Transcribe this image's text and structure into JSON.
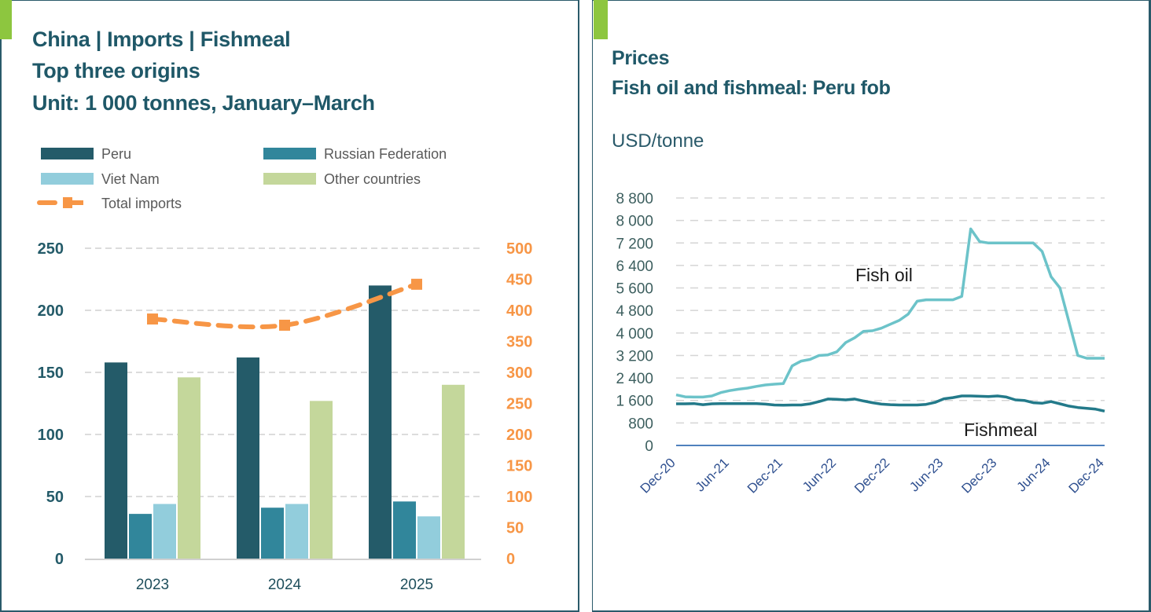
{
  "left_panel": {
    "title_lines": [
      "China | Imports | Fishmeal",
      "Top three origins",
      "Unit: 1 000 tonnes, January–March"
    ],
    "accent_color": "#8dc63f"
  },
  "right_panel": {
    "title_lines": [
      "Prices",
      "Fish oil and fishmeal: Peru fob"
    ],
    "unit_label": "USD/tonne",
    "accent_color": "#8dc63f"
  },
  "chart_data": [
    {
      "type": "bar",
      "title": "China | Imports | Fishmeal — Top three origins",
      "subtitle": "Unit: 1 000 tonnes, January–March",
      "categories": [
        "2023",
        "2024",
        "2025"
      ],
      "series": [
        {
          "name": "Peru",
          "color": "#245b69",
          "axis": "left",
          "values": [
            158,
            162,
            220
          ]
        },
        {
          "name": "Russian Federation",
          "color": "#31869b",
          "axis": "left",
          "values": [
            36,
            41,
            46
          ]
        },
        {
          "name": "Viet Nam",
          "color": "#92cddc",
          "axis": "left",
          "values": [
            44,
            44,
            34
          ]
        },
        {
          "name": "Other countries",
          "color": "#c4d79b",
          "axis": "left",
          "values": [
            146,
            127,
            140
          ]
        },
        {
          "name": "Total imports",
          "color": "#f79646",
          "axis": "right",
          "style": "dashed-line-square-markers",
          "values": [
            386,
            376,
            442
          ]
        }
      ],
      "legend": {
        "placement": "top",
        "entries": [
          "Peru",
          "Russian Federation",
          "Viet Nam",
          "Other countries",
          "Total imports"
        ]
      },
      "y_left": {
        "ylim": [
          0,
          250
        ],
        "ticks": [
          "0",
          "50",
          "100",
          "150",
          "200",
          "250"
        ],
        "color": "#245b69"
      },
      "y_right": {
        "ylim": [
          0,
          500
        ],
        "ticks": [
          "0",
          "50",
          "100",
          "150",
          "200",
          "250",
          "300",
          "350",
          "400",
          "450",
          "500"
        ],
        "color": "#f79646"
      },
      "xlabel": "",
      "grid": true
    },
    {
      "type": "line",
      "title": "Prices — Fish oil and fishmeal: Peru fob",
      "ylabel": "USD/tonne",
      "ylim": [
        0,
        8800
      ],
      "y_ticks": [
        "0",
        "800",
        "1 600",
        "2 400",
        "3 200",
        "4 000",
        "4 800",
        "5 600",
        "6 400",
        "7 200",
        "8 000",
        "8 800"
      ],
      "x_tick_labels": [
        "Dec-20",
        "Jun-21",
        "Dec-21",
        "Jun-22",
        "Dec-22",
        "Jun-23",
        "Dec-23",
        "Jun-24",
        "Dec-24"
      ],
      "x_start": "Dec-20",
      "x_end": "Dec-24",
      "x_unit": "month",
      "grid": true,
      "series": [
        {
          "name": "Fish oil",
          "label": "Fish oil",
          "color": "#6cc3c9",
          "values": [
            1800,
            1730,
            1720,
            1720,
            1760,
            1880,
            1950,
            2000,
            2040,
            2100,
            2150,
            2180,
            2200,
            2830,
            3000,
            3060,
            3200,
            3220,
            3330,
            3660,
            3830,
            4060,
            4080,
            4170,
            4310,
            4450,
            4670,
            5130,
            5180,
            5180,
            5180,
            5180,
            5300,
            7700,
            7250,
            7200,
            7200,
            7200,
            7200,
            7200,
            7200,
            6900,
            6000,
            5600,
            4400,
            3200,
            3100,
            3100,
            3100
          ]
        },
        {
          "name": "Fishmeal",
          "label": "Fishmeal",
          "color": "#237a8a",
          "values": [
            1480,
            1480,
            1490,
            1450,
            1480,
            1490,
            1490,
            1490,
            1490,
            1490,
            1470,
            1440,
            1430,
            1440,
            1440,
            1480,
            1560,
            1650,
            1640,
            1620,
            1650,
            1580,
            1520,
            1470,
            1450,
            1440,
            1440,
            1440,
            1460,
            1530,
            1660,
            1700,
            1760,
            1760,
            1750,
            1740,
            1760,
            1720,
            1620,
            1600,
            1520,
            1500,
            1560,
            1480,
            1400,
            1350,
            1320,
            1290,
            1220
          ]
        }
      ]
    }
  ]
}
